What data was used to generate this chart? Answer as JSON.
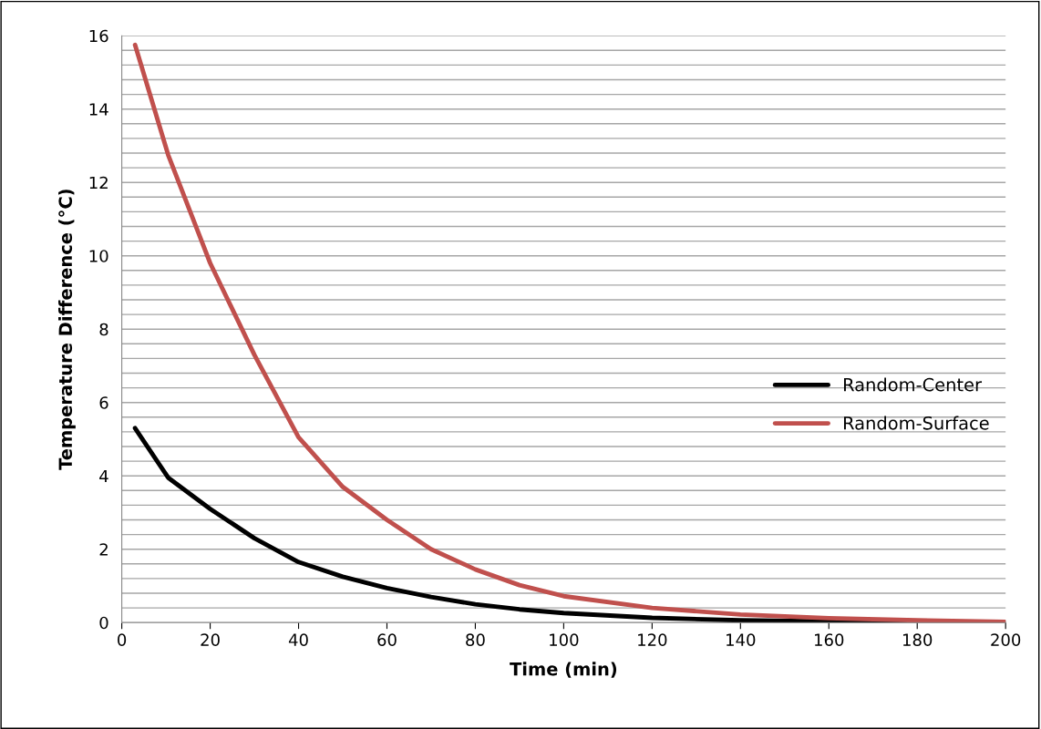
{
  "chart_data": {
    "type": "line",
    "xlabel": "Time (min)",
    "ylabel": "Temperature Difference (°C)",
    "xlim": [
      0,
      200
    ],
    "xticks": [
      0,
      20,
      40,
      60,
      80,
      100,
      120,
      140,
      160,
      180,
      200
    ],
    "ylim": [
      0,
      16
    ],
    "yticks": [
      0,
      {
        "value": 0.4,
        "label": null
      },
      {
        "value": 0.8,
        "label": null
      },
      {
        "value": 1.2,
        "label": null
      },
      {
        "value": 1.6,
        "label": null
      },
      2,
      {
        "value": 2.4,
        "label": null
      },
      {
        "value": 2.8,
        "label": null
      },
      {
        "value": 3.2,
        "label": null
      },
      {
        "value": 3.6,
        "label": null
      },
      4,
      {
        "value": 4.4,
        "label": null
      },
      {
        "value": 4.8,
        "label": null
      },
      {
        "value": 5.2,
        "label": null
      },
      {
        "value": 5.6,
        "label": null
      },
      6,
      {
        "value": 6.4,
        "label": null
      },
      {
        "value": 6.8,
        "label": null
      },
      {
        "value": 7.2,
        "label": null
      },
      {
        "value": 7.6,
        "label": null
      },
      8,
      {
        "value": 8.4,
        "label": null
      },
      {
        "value": 8.8,
        "label": null
      },
      {
        "value": 9.2,
        "label": null
      },
      {
        "value": 9.6,
        "label": null
      },
      10,
      {
        "value": 10.4,
        "label": null
      },
      {
        "value": 10.8,
        "label": null
      },
      {
        "value": 11.2,
        "label": null
      },
      {
        "value": 11.6,
        "label": null
      },
      12,
      {
        "value": 12.4,
        "label": null
      },
      {
        "value": 12.8,
        "label": null
      },
      {
        "value": 13.2,
        "label": null
      },
      {
        "value": 13.6,
        "label": null
      },
      14,
      {
        "value": 14.4,
        "label": null
      },
      {
        "value": 14.8,
        "label": null
      },
      {
        "value": 15.2,
        "label": null
      },
      {
        "value": 15.6,
        "label": null
      },
      16
    ],
    "grid": "y",
    "legend": "right",
    "marker": "none",
    "line_style": "solid",
    "series": [
      {
        "name": "Random-Center",
        "color": "#000000",
        "x": [
          3,
          10.5,
          20,
          30,
          40,
          50,
          60,
          70,
          80,
          90,
          100,
          120,
          140,
          160,
          180,
          200
        ],
        "values": [
          5.3,
          3.95,
          3.1,
          2.3,
          1.65,
          1.25,
          0.94,
          0.7,
          0.5,
          0.36,
          0.26,
          0.13,
          0.06,
          0.03,
          0.01,
          0
        ]
      },
      {
        "name": "Random-Surface",
        "color": "#c0504d",
        "x": [
          3,
          10.5,
          20,
          30,
          40,
          50,
          60,
          70,
          80,
          90,
          100,
          120,
          140,
          160,
          180,
          200
        ],
        "values": [
          15.75,
          12.75,
          9.8,
          7.3,
          5.05,
          3.7,
          2.8,
          2.0,
          1.45,
          1.02,
          0.72,
          0.4,
          0.22,
          0.12,
          0.06,
          0.02
        ]
      }
    ]
  }
}
